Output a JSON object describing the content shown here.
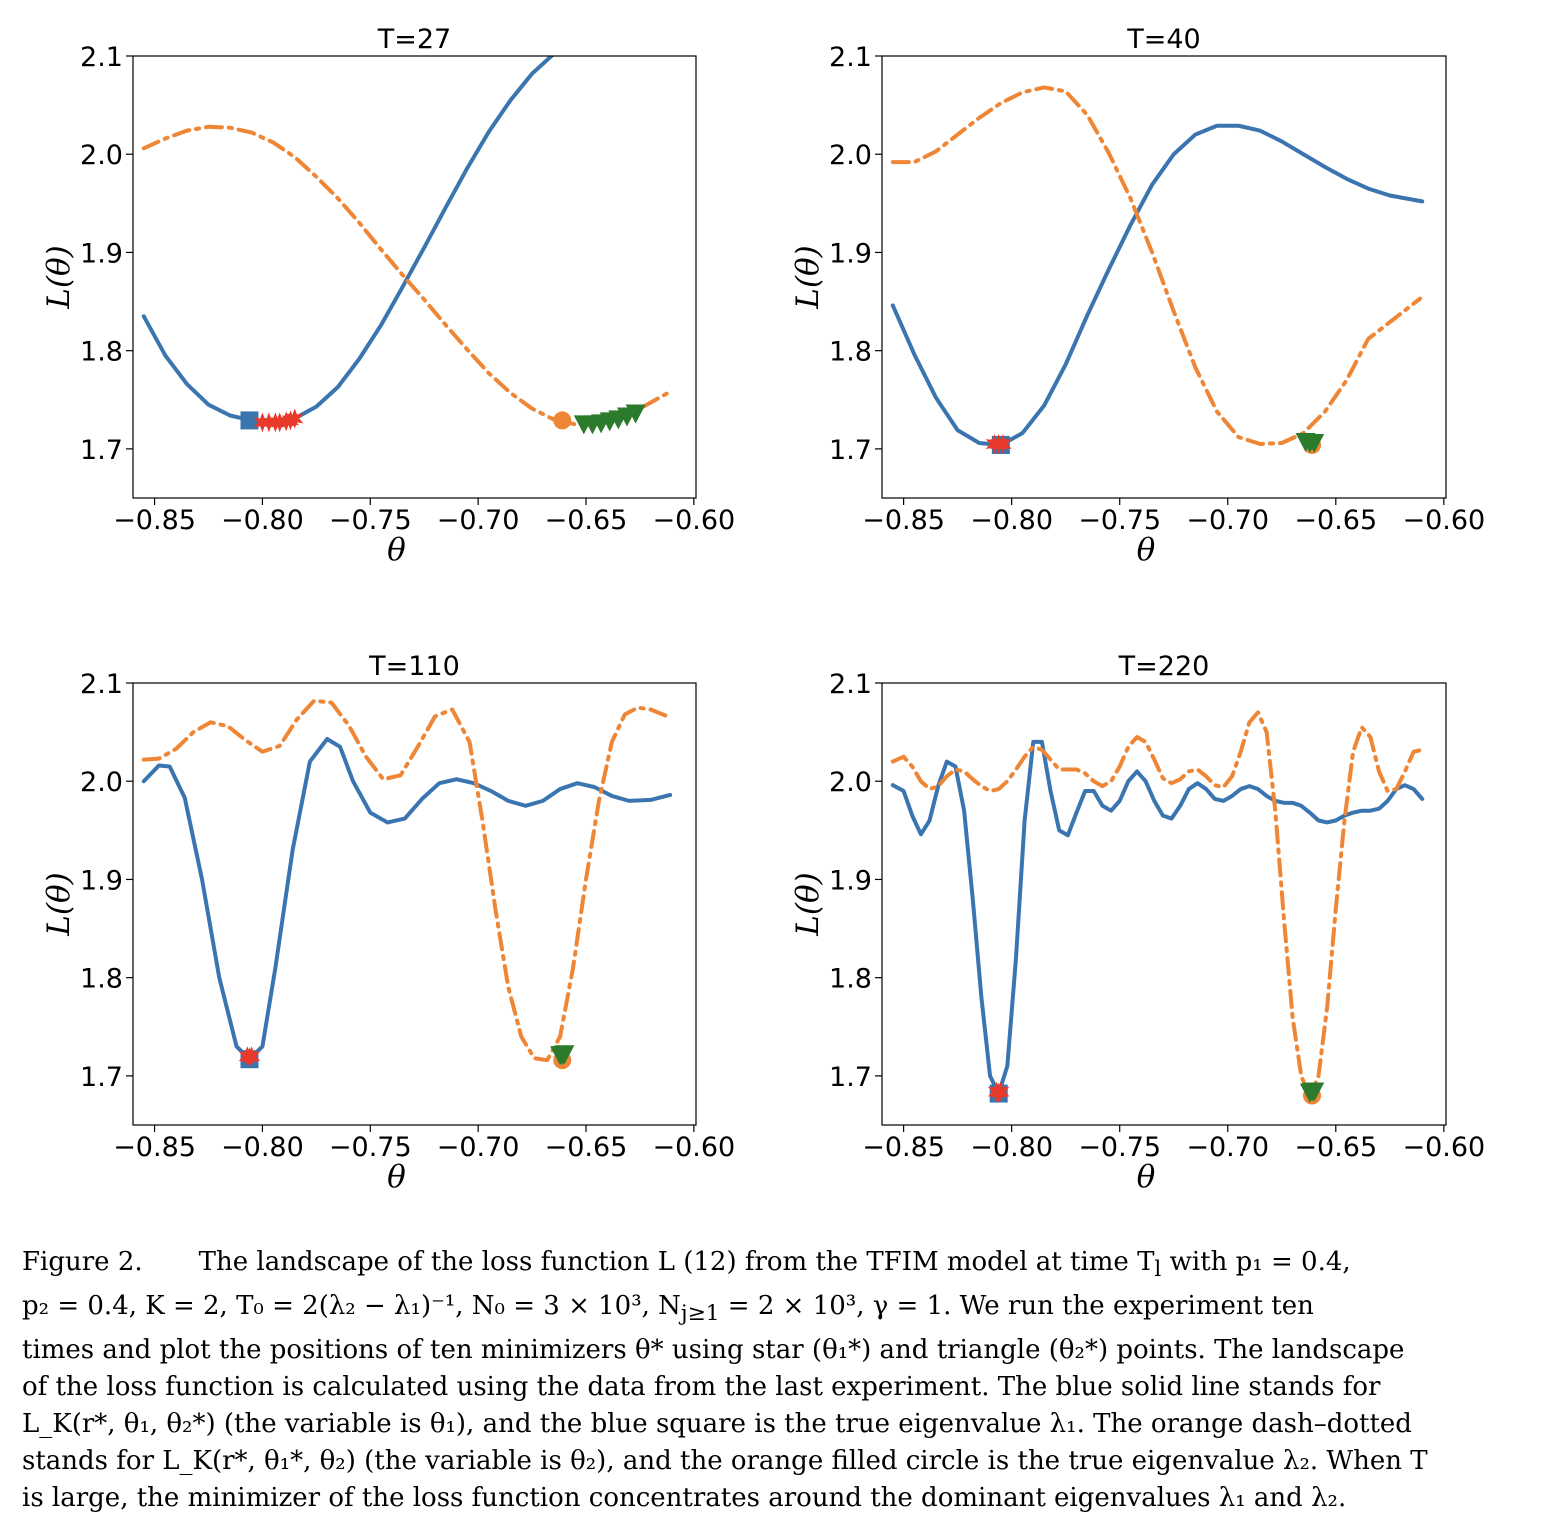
{
  "figure": {
    "colors": {
      "blue": "#3a75b0",
      "orange": "#ef8636",
      "red": "#e8392b",
      "green": "#2c7a2c"
    }
  },
  "chart_data": [
    {
      "type": "line",
      "title": "T=27",
      "xlabel": "θ",
      "ylabel": "L(θ)",
      "xlim": [
        -0.86,
        -0.599
      ],
      "ylim": [
        1.65,
        2.1
      ],
      "xticks": [
        -0.85,
        -0.8,
        -0.75,
        -0.7,
        -0.65,
        -0.6
      ],
      "xtick_labels": [
        "−0.85",
        "−0.80",
        "−0.75",
        "−0.70",
        "−0.65",
        "−0.60"
      ],
      "yticks": [
        1.7,
        1.8,
        1.9,
        2.0,
        2.1
      ],
      "ytick_labels": [
        "1.7",
        "1.8",
        "1.9",
        "2.0",
        "2.1"
      ],
      "series": [
        {
          "style": "solid",
          "color": "#3a75b0",
          "x": [
            -0.855,
            -0.845,
            -0.835,
            -0.825,
            -0.815,
            -0.805,
            -0.795,
            -0.785,
            -0.775,
            -0.765,
            -0.755,
            -0.745,
            -0.735,
            -0.725,
            -0.715,
            -0.705,
            -0.695,
            -0.685,
            -0.675,
            -0.665,
            -0.655,
            -0.648
          ],
          "y": [
            1.835,
            1.795,
            1.766,
            1.745,
            1.734,
            1.729,
            1.728,
            1.731,
            1.743,
            1.763,
            1.792,
            1.826,
            1.865,
            1.905,
            1.946,
            1.986,
            2.023,
            2.055,
            2.082,
            2.102,
            2.118,
            2.128
          ]
        },
        {
          "style": "dashdot",
          "color": "#ef8636",
          "x": [
            -0.855,
            -0.845,
            -0.835,
            -0.825,
            -0.815,
            -0.805,
            -0.795,
            -0.785,
            -0.775,
            -0.765,
            -0.755,
            -0.745,
            -0.735,
            -0.725,
            -0.715,
            -0.705,
            -0.695,
            -0.685,
            -0.675,
            -0.665,
            -0.655,
            -0.645,
            -0.635,
            -0.625,
            -0.612
          ],
          "y": [
            2.006,
            2.016,
            2.024,
            2.028,
            2.027,
            2.022,
            2.012,
            1.997,
            1.977,
            1.955,
            1.93,
            1.903,
            1.877,
            1.852,
            1.826,
            1.801,
            1.777,
            1.757,
            1.741,
            1.73,
            1.725,
            1.726,
            1.731,
            1.741,
            1.757
          ]
        }
      ],
      "markers": [
        {
          "shape": "square",
          "color": "#3a75b0",
          "x": [
            -0.806
          ],
          "y": [
            1.729
          ]
        },
        {
          "shape": "star",
          "color": "#e8392b",
          "x": [
            -0.8,
            -0.797,
            -0.794,
            -0.792,
            -0.789,
            -0.787,
            -0.785
          ],
          "y": [
            1.727,
            1.727,
            1.727,
            1.727,
            1.728,
            1.729,
            1.731
          ]
        },
        {
          "shape": "circle",
          "color": "#ef8636",
          "x": [
            -0.661
          ],
          "y": [
            1.729
          ]
        },
        {
          "shape": "triangle",
          "color": "#2c7a2c",
          "x": [
            -0.651,
            -0.647,
            -0.643,
            -0.639,
            -0.635,
            -0.631,
            -0.627
          ],
          "y": [
            1.725,
            1.725,
            1.726,
            1.728,
            1.73,
            1.733,
            1.736
          ]
        }
      ]
    },
    {
      "type": "line",
      "title": "T=40",
      "xlabel": "θ",
      "ylabel": "L(θ)",
      "xlim": [
        -0.86,
        -0.599
      ],
      "ylim": [
        1.65,
        2.1
      ],
      "xticks": [
        -0.85,
        -0.8,
        -0.75,
        -0.7,
        -0.65,
        -0.6
      ],
      "xtick_labels": [
        "−0.85",
        "−0.80",
        "−0.75",
        "−0.70",
        "−0.65",
        "−0.60"
      ],
      "yticks": [
        1.7,
        1.8,
        1.9,
        2.0,
        2.1
      ],
      "ytick_labels": [
        "1.7",
        "1.8",
        "1.9",
        "2.0",
        "2.1"
      ],
      "series": [
        {
          "style": "solid",
          "color": "#3a75b0",
          "x": [
            -0.855,
            -0.845,
            -0.835,
            -0.825,
            -0.815,
            -0.805,
            -0.795,
            -0.785,
            -0.775,
            -0.765,
            -0.755,
            -0.745,
            -0.735,
            -0.725,
            -0.715,
            -0.705,
            -0.695,
            -0.685,
            -0.675,
            -0.665,
            -0.655,
            -0.645,
            -0.635,
            -0.625,
            -0.61
          ],
          "y": [
            1.846,
            1.796,
            1.752,
            1.719,
            1.706,
            1.704,
            1.716,
            1.744,
            1.786,
            1.836,
            1.883,
            1.928,
            1.969,
            2.0,
            2.02,
            2.029,
            2.029,
            2.024,
            2.013,
            2.0,
            1.987,
            1.975,
            1.965,
            1.958,
            1.952
          ]
        },
        {
          "style": "dashdot",
          "color": "#ef8636",
          "x": [
            -0.855,
            -0.845,
            -0.835,
            -0.825,
            -0.815,
            -0.805,
            -0.795,
            -0.785,
            -0.775,
            -0.765,
            -0.755,
            -0.745,
            -0.735,
            -0.725,
            -0.715,
            -0.705,
            -0.695,
            -0.685,
            -0.675,
            -0.665,
            -0.655,
            -0.645,
            -0.635,
            -0.625,
            -0.611
          ],
          "y": [
            1.992,
            1.992,
            2.003,
            2.02,
            2.037,
            2.052,
            2.063,
            2.068,
            2.064,
            2.04,
            2.001,
            1.955,
            1.9,
            1.84,
            1.783,
            1.738,
            1.712,
            1.705,
            1.706,
            1.716,
            1.738,
            1.77,
            1.812,
            1.829,
            1.853
          ]
        }
      ],
      "markers": [
        {
          "shape": "square",
          "color": "#3a75b0",
          "x": [
            -0.805
          ],
          "y": [
            1.704
          ]
        },
        {
          "shape": "star",
          "color": "#e8392b",
          "x": [
            -0.808,
            -0.806,
            -0.804
          ],
          "y": [
            1.705,
            1.705,
            1.705
          ]
        },
        {
          "shape": "circle",
          "color": "#ef8636",
          "x": [
            -0.661
          ],
          "y": [
            1.704
          ]
        },
        {
          "shape": "triangle",
          "color": "#2c7a2c",
          "x": [
            -0.664,
            -0.662,
            -0.66
          ],
          "y": [
            1.707,
            1.706,
            1.706
          ]
        }
      ]
    },
    {
      "type": "line",
      "title": "T=110",
      "xlabel": "θ",
      "ylabel": "L(θ)",
      "xlim": [
        -0.86,
        -0.599
      ],
      "ylim": [
        1.65,
        2.1
      ],
      "xticks": [
        -0.85,
        -0.8,
        -0.75,
        -0.7,
        -0.65,
        -0.6
      ],
      "xtick_labels": [
        "−0.85",
        "−0.80",
        "−0.75",
        "−0.70",
        "−0.65",
        "−0.60"
      ],
      "yticks": [
        1.7,
        1.8,
        1.9,
        2.0,
        2.1
      ],
      "ytick_labels": [
        "1.7",
        "1.8",
        "1.9",
        "2.0",
        "2.1"
      ],
      "series": [
        {
          "style": "solid",
          "color": "#3a75b0",
          "x": [
            -0.855,
            -0.848,
            -0.843,
            -0.836,
            -0.828,
            -0.82,
            -0.812,
            -0.806,
            -0.8,
            -0.794,
            -0.786,
            -0.778,
            -0.77,
            -0.764,
            -0.758,
            -0.75,
            -0.742,
            -0.734,
            -0.726,
            -0.718,
            -0.71,
            -0.702,
            -0.694,
            -0.686,
            -0.678,
            -0.67,
            -0.662,
            -0.654,
            -0.646,
            -0.638,
            -0.63,
            -0.62,
            -0.611
          ],
          "y": [
            2.0,
            2.016,
            2.015,
            1.983,
            1.9,
            1.8,
            1.73,
            1.717,
            1.73,
            1.81,
            1.93,
            2.02,
            2.043,
            2.035,
            2.0,
            1.968,
            1.958,
            1.962,
            1.982,
            1.998,
            2.002,
            1.998,
            1.99,
            1.98,
            1.975,
            1.98,
            1.992,
            1.998,
            1.994,
            1.985,
            1.98,
            1.981,
            1.986
          ]
        },
        {
          "style": "dashdot",
          "color": "#ef8636",
          "x": [
            -0.855,
            -0.848,
            -0.84,
            -0.832,
            -0.824,
            -0.816,
            -0.808,
            -0.8,
            -0.792,
            -0.784,
            -0.776,
            -0.768,
            -0.76,
            -0.752,
            -0.744,
            -0.736,
            -0.728,
            -0.72,
            -0.712,
            -0.704,
            -0.698,
            -0.692,
            -0.686,
            -0.68,
            -0.674,
            -0.668,
            -0.662,
            -0.656,
            -0.65,
            -0.644,
            -0.638,
            -0.632,
            -0.626,
            -0.62,
            -0.611
          ],
          "y": [
            2.022,
            2.023,
            2.033,
            2.05,
            2.06,
            2.056,
            2.042,
            2.03,
            2.036,
            2.063,
            2.082,
            2.08,
            2.057,
            2.025,
            2.002,
            2.006,
            2.035,
            2.066,
            2.073,
            2.04,
            1.96,
            1.87,
            1.79,
            1.74,
            1.718,
            1.716,
            1.74,
            1.81,
            1.9,
            1.98,
            2.04,
            2.068,
            2.075,
            2.073,
            2.065
          ]
        }
      ],
      "markers": [
        {
          "shape": "square",
          "color": "#3a75b0",
          "x": [
            -0.806
          ],
          "y": [
            1.717
          ]
        },
        {
          "shape": "star",
          "color": "#e8392b",
          "x": [
            -0.807,
            -0.806,
            -0.805
          ],
          "y": [
            1.72,
            1.719,
            1.72
          ]
        },
        {
          "shape": "circle",
          "color": "#ef8636",
          "x": [
            -0.661
          ],
          "y": [
            1.716
          ]
        },
        {
          "shape": "triangle",
          "color": "#2c7a2c",
          "x": [
            -0.662,
            -0.661,
            -0.66
          ],
          "y": [
            1.721,
            1.721,
            1.722
          ]
        }
      ]
    },
    {
      "type": "line",
      "title": "T=220",
      "xlabel": "θ",
      "ylabel": "L(θ)",
      "xlim": [
        -0.86,
        -0.599
      ],
      "ylim": [
        1.65,
        2.1
      ],
      "xticks": [
        -0.85,
        -0.8,
        -0.75,
        -0.7,
        -0.65,
        -0.6
      ],
      "xtick_labels": [
        "−0.85",
        "−0.80",
        "−0.75",
        "−0.70",
        "−0.65",
        "−0.60"
      ],
      "yticks": [
        1.7,
        1.8,
        1.9,
        2.0,
        2.1
      ],
      "ytick_labels": [
        "1.7",
        "1.8",
        "1.9",
        "2.0",
        "2.1"
      ],
      "series": [
        {
          "style": "solid",
          "color": "#3a75b0",
          "x": [
            -0.855,
            -0.85,
            -0.846,
            -0.842,
            -0.838,
            -0.834,
            -0.83,
            -0.826,
            -0.822,
            -0.818,
            -0.814,
            -0.81,
            -0.806,
            -0.802,
            -0.798,
            -0.794,
            -0.79,
            -0.786,
            -0.782,
            -0.778,
            -0.774,
            -0.77,
            -0.766,
            -0.762,
            -0.758,
            -0.754,
            -0.75,
            -0.746,
            -0.742,
            -0.738,
            -0.734,
            -0.73,
            -0.726,
            -0.722,
            -0.718,
            -0.714,
            -0.71,
            -0.706,
            -0.702,
            -0.698,
            -0.694,
            -0.69,
            -0.686,
            -0.682,
            -0.678,
            -0.674,
            -0.67,
            -0.666,
            -0.662,
            -0.658,
            -0.654,
            -0.65,
            -0.646,
            -0.642,
            -0.638,
            -0.634,
            -0.63,
            -0.626,
            -0.622,
            -0.618,
            -0.614,
            -0.61
          ],
          "y": [
            1.996,
            1.99,
            1.965,
            1.946,
            1.96,
            1.995,
            2.02,
            2.015,
            1.97,
            1.88,
            1.78,
            1.7,
            1.682,
            1.71,
            1.82,
            1.96,
            2.04,
            2.04,
            1.99,
            1.95,
            1.945,
            1.968,
            1.99,
            1.99,
            1.975,
            1.97,
            1.98,
            2.0,
            2.01,
            2.0,
            1.98,
            1.965,
            1.962,
            1.975,
            1.992,
            1.998,
            1.992,
            1.982,
            1.98,
            1.985,
            1.992,
            1.995,
            1.992,
            1.985,
            1.98,
            1.978,
            1.978,
            1.975,
            1.968,
            1.96,
            1.958,
            1.96,
            1.965,
            1.968,
            1.97,
            1.97,
            1.972,
            1.98,
            1.992,
            1.996,
            1.992,
            1.982
          ]
        },
        {
          "style": "dashdot",
          "color": "#ef8636",
          "x": [
            -0.855,
            -0.85,
            -0.846,
            -0.842,
            -0.838,
            -0.834,
            -0.83,
            -0.826,
            -0.822,
            -0.818,
            -0.814,
            -0.81,
            -0.806,
            -0.802,
            -0.798,
            -0.794,
            -0.79,
            -0.786,
            -0.782,
            -0.778,
            -0.774,
            -0.77,
            -0.766,
            -0.762,
            -0.758,
            -0.754,
            -0.75,
            -0.746,
            -0.742,
            -0.738,
            -0.734,
            -0.73,
            -0.726,
            -0.722,
            -0.718,
            -0.714,
            -0.71,
            -0.706,
            -0.702,
            -0.698,
            -0.694,
            -0.69,
            -0.686,
            -0.682,
            -0.678,
            -0.674,
            -0.67,
            -0.666,
            -0.662,
            -0.658,
            -0.654,
            -0.65,
            -0.646,
            -0.642,
            -0.638,
            -0.634,
            -0.63,
            -0.626,
            -0.622,
            -0.618,
            -0.614,
            -0.61
          ],
          "y": [
            2.02,
            2.025,
            2.015,
            2.0,
            1.992,
            1.995,
            2.005,
            2.012,
            2.01,
            2.002,
            1.995,
            1.99,
            1.992,
            2.0,
            2.012,
            2.025,
            2.035,
            2.032,
            2.022,
            2.012,
            2.012,
            2.012,
            2.008,
            2.0,
            1.995,
            2.0,
            2.015,
            2.035,
            2.045,
            2.04,
            2.022,
            2.003,
            1.998,
            2.002,
            2.01,
            2.012,
            2.005,
            1.996,
            1.994,
            2.005,
            2.03,
            2.06,
            2.07,
            2.05,
            1.97,
            1.86,
            1.76,
            1.7,
            1.678,
            1.7,
            1.77,
            1.87,
            1.96,
            2.03,
            2.055,
            2.045,
            2.01,
            1.99,
            1.992,
            2.01,
            2.03,
            2.032
          ]
        }
      ],
      "markers": [
        {
          "shape": "square",
          "color": "#3a75b0",
          "x": [
            -0.806
          ],
          "y": [
            1.682
          ]
        },
        {
          "shape": "star",
          "color": "#e8392b",
          "x": [
            -0.807,
            -0.806,
            -0.805
          ],
          "y": [
            1.684,
            1.683,
            1.684
          ]
        },
        {
          "shape": "circle",
          "color": "#ef8636",
          "x": [
            -0.661
          ],
          "y": [
            1.68
          ]
        },
        {
          "shape": "triangle",
          "color": "#2c7a2c",
          "x": [
            -0.662,
            -0.661,
            -0.66
          ],
          "y": [
            1.683,
            1.684,
            1.684
          ]
        }
      ]
    }
  ],
  "caption": {
    "label": "Figure 2.",
    "line1": "The landscape of the loss function L (12) from the TFIM model at time T",
    "line1_sub": "l",
    "line1_end": " with p₁ = 0.4,",
    "line2": "p₂ = 0.4, K = 2, T₀ = 2(λ₂ − λ₁)⁻¹, N₀ = 3 × 10³, N",
    "line2_sub": "j≥1",
    "line2_end": " = 2 × 10³, γ = 1.  We run the experiment ten",
    "line3": "times and plot the positions of ten minimizers θ* using star (θ₁*) and triangle (θ₂*) points. The landscape",
    "line4": "of the loss function is calculated using the data from the last experiment.  The blue solid line stands for",
    "line5": "L_K(r*, θ₁, θ₂*) (the variable is θ₁), and the blue square is the true eigenvalue λ₁.  The orange dash–dotted",
    "line6": "stands for L_K(r*, θ₁*, θ₂) (the variable is θ₂), and the orange filled circle is the true eigenvalue λ₂. When T",
    "line7": "is large, the minimizer of the loss function concentrates around the dominant eigenvalues λ₁ and λ₂."
  }
}
